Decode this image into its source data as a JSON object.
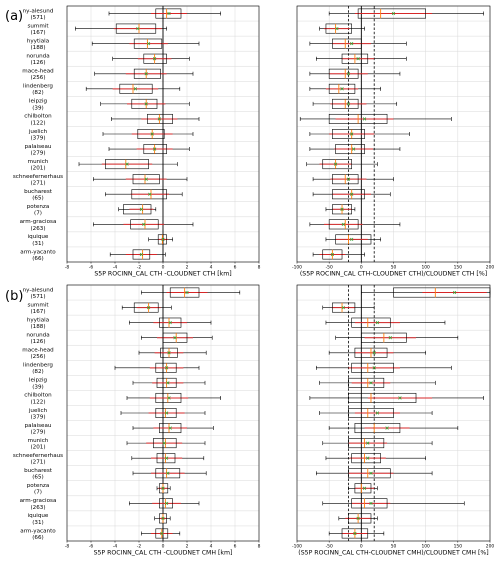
{
  "panel_labels": [
    "(a)",
    "(b)"
  ],
  "stations": [
    {
      "name": "ny-alesund",
      "n": "(571)"
    },
    {
      "name": "summit",
      "n": "(167)"
    },
    {
      "name": "hyytiala",
      "n": "(188)"
    },
    {
      "name": "norunda",
      "n": "(126)"
    },
    {
      "name": "mace-head",
      "n": "(256)"
    },
    {
      "name": "lindenberg",
      "n": "(82)"
    },
    {
      "name": "leipzig",
      "n": "(39)"
    },
    {
      "name": "chilbolton",
      "n": "(122)"
    },
    {
      "name": "juelich",
      "n": "(379)"
    },
    {
      "name": "palaiseau",
      "n": "(279)"
    },
    {
      "name": "munich",
      "n": "(201)"
    },
    {
      "name": "schneefernerhaus",
      "n": "(271)"
    },
    {
      "name": "bucharest",
      "n": "(65)"
    },
    {
      "name": "potenza",
      "n": "(7)"
    },
    {
      "name": "arm-graciosa",
      "n": "(263)"
    },
    {
      "name": "iquique",
      "n": "(31)"
    },
    {
      "name": "arm-yacanto",
      "n": "(66)"
    }
  ],
  "colors": {
    "median": "#ff7f0e",
    "mean": "#2ca02c",
    "std": "#d62728",
    "box": "#000000",
    "grid": "#d9d9d9",
    "ref": "#000000"
  },
  "chart_data": [
    {
      "type": "box",
      "panel": "a-left",
      "xlabel": "S5P ROCINN_CAL CTH -CLOUDNET CTH [km]",
      "xlim": [
        -8,
        8
      ],
      "xticks": [
        -8,
        -6,
        -4,
        -2,
        0,
        2,
        4,
        6,
        8
      ],
      "ref_lines": [
        0
      ],
      "boxes": [
        {
          "q1": -0.6,
          "med": 0.3,
          "q3": 1.5,
          "wlo": -4.5,
          "whi": 4.8,
          "mean": 0.5,
          "std": 1.5
        },
        {
          "q1": -3.9,
          "med": -2.0,
          "q3": -0.6,
          "wlo": -7.3,
          "whi": 0.3,
          "mean": -2.1,
          "std": 2.0
        },
        {
          "q1": -2.4,
          "med": -1.3,
          "q3": -0.1,
          "wlo": -5.9,
          "whi": 3.0,
          "mean": -1.2,
          "std": 1.6
        },
        {
          "q1": -1.6,
          "med": -0.7,
          "q3": 0.3,
          "wlo": -4.2,
          "whi": 2.2,
          "mean": -0.7,
          "std": 1.4
        },
        {
          "q1": -2.4,
          "med": -1.4,
          "q3": -0.2,
          "wlo": -5.7,
          "whi": 2.5,
          "mean": -1.4,
          "std": 1.7
        },
        {
          "q1": -3.6,
          "med": -2.5,
          "q3": -0.9,
          "wlo": -6.4,
          "whi": 1.4,
          "mean": -2.3,
          "std": 1.9
        },
        {
          "q1": -2.6,
          "med": -1.4,
          "q3": -0.5,
          "wlo": -5.2,
          "whi": 2.2,
          "mean": -1.4,
          "std": 1.6
        },
        {
          "q1": -1.3,
          "med": -0.3,
          "q3": 0.8,
          "wlo": -4.3,
          "whi": 3.0,
          "mean": -0.3,
          "std": 1.5
        },
        {
          "q1": -2.1,
          "med": -0.9,
          "q3": 0.1,
          "wlo": -5.0,
          "whi": 2.5,
          "mean": -0.9,
          "std": 1.7
        },
        {
          "q1": -1.6,
          "med": -0.7,
          "q3": 0.3,
          "wlo": -4.5,
          "whi": 2.2,
          "mean": -0.7,
          "std": 1.5
        },
        {
          "q1": -4.8,
          "med": -3.1,
          "q3": -1.2,
          "wlo": -7.0,
          "whi": 1.2,
          "mean": -3.0,
          "std": 2.1
        },
        {
          "q1": -2.5,
          "med": -1.5,
          "q3": -0.3,
          "wlo": -5.8,
          "whi": 2.0,
          "mean": -1.4,
          "std": 1.7
        },
        {
          "q1": -2.6,
          "med": -1.0,
          "q3": 0.3,
          "wlo": -4.8,
          "whi": 1.6,
          "mean": -1.1,
          "std": 1.6
        },
        {
          "q1": -3.3,
          "med": -1.7,
          "q3": -1.0,
          "wlo": -3.7,
          "whi": -0.6,
          "mean": -1.8,
          "std": 1.0
        },
        {
          "q1": -2.7,
          "med": -1.5,
          "q3": -0.4,
          "wlo": -5.8,
          "whi": 2.5,
          "mean": -1.6,
          "std": 1.7
        },
        {
          "q1": -0.4,
          "med": -0.05,
          "q3": 0.3,
          "wlo": -1.2,
          "whi": 0.8,
          "mean": 0.0,
          "std": 0.4
        },
        {
          "q1": -2.5,
          "med": -1.7,
          "q3": -1.1,
          "wlo": -4.4,
          "whi": 0.2,
          "mean": -1.8,
          "std": 1.3
        }
      ]
    },
    {
      "type": "box",
      "panel": "a-right",
      "xlabel": "(S5P ROCINN_CAL CTH-CLOUDNET CTH)/CLOUDNET CTH [%]",
      "xlim": [
        -100,
        200
      ],
      "xticks": [
        -100,
        -50,
        0,
        50,
        100,
        150,
        200
      ],
      "ref_lines": [
        0
      ],
      "dashed_lines": [
        -20,
        20
      ],
      "boxes": [
        {
          "q1": -5,
          "med": 30,
          "q3": 100,
          "wlo": -50,
          "whi": 190,
          "mean": 50,
          "std": 60
        },
        {
          "q1": -55,
          "med": -40,
          "q3": -15,
          "wlo": -65,
          "whi": 5,
          "mean": -38,
          "std": 20
        },
        {
          "q1": -45,
          "med": -25,
          "q3": 0,
          "wlo": -80,
          "whi": 70,
          "mean": -15,
          "std": 30
        },
        {
          "q1": -30,
          "med": -10,
          "q3": 10,
          "wlo": -70,
          "whi": 70,
          "mean": -5,
          "std": 25
        },
        {
          "q1": -50,
          "med": -25,
          "q3": -5,
          "wlo": -80,
          "whi": 60,
          "mean": -20,
          "std": 30
        },
        {
          "q1": -50,
          "med": -35,
          "q3": -10,
          "wlo": -80,
          "whi": 30,
          "mean": -30,
          "std": 25
        },
        {
          "q1": -45,
          "med": -25,
          "q3": -5,
          "wlo": -75,
          "whi": 55,
          "mean": -20,
          "std": 28
        },
        {
          "q1": -50,
          "med": -5,
          "q3": 40,
          "wlo": -95,
          "whi": 140,
          "mean": 5,
          "std": 45
        },
        {
          "q1": -45,
          "med": -15,
          "q3": 5,
          "wlo": -80,
          "whi": 75,
          "mean": -15,
          "std": 35
        },
        {
          "q1": -40,
          "med": -15,
          "q3": 5,
          "wlo": -80,
          "whi": 60,
          "mean": -12,
          "std": 30
        },
        {
          "q1": -60,
          "med": -40,
          "q3": -15,
          "wlo": -85,
          "whi": 25,
          "mean": -40,
          "std": 25
        },
        {
          "q1": -45,
          "med": -25,
          "q3": -5,
          "wlo": -75,
          "whi": 50,
          "mean": -20,
          "std": 28
        },
        {
          "q1": -45,
          "med": -15,
          "q3": 5,
          "wlo": -75,
          "whi": 45,
          "mean": -15,
          "std": 30
        },
        {
          "q1": -45,
          "med": -30,
          "q3": -15,
          "wlo": -55,
          "whi": -10,
          "mean": -30,
          "std": 15
        },
        {
          "q1": -50,
          "med": -25,
          "q3": -5,
          "wlo": -80,
          "whi": 60,
          "mean": -28,
          "std": 30
        },
        {
          "q1": -40,
          "med": -20,
          "q3": 15,
          "wlo": -55,
          "whi": 30,
          "mean": -15,
          "std": 25
        },
        {
          "q1": -60,
          "med": -45,
          "q3": -30,
          "wlo": -75,
          "whi": 5,
          "mean": -45,
          "std": 20
        }
      ]
    },
    {
      "type": "box",
      "panel": "b-left",
      "xlabel": "S5P ROCINN_CAL CTH -CLOUDNET CMH [km]",
      "xlim": [
        -8,
        8
      ],
      "xticks": [
        -8,
        -6,
        -4,
        -2,
        0,
        2,
        4,
        6,
        8
      ],
      "ref_lines": [
        0
      ],
      "boxes": [
        {
          "q1": 0.6,
          "med": 1.8,
          "q3": 3.0,
          "wlo": -1.8,
          "whi": 6.4,
          "mean": 2.0,
          "std": 1.7
        },
        {
          "q1": -2.4,
          "med": -1.2,
          "q3": -0.4,
          "wlo": -3.4,
          "whi": 0.7,
          "mean": -1.2,
          "std": 1.0
        },
        {
          "q1": -0.3,
          "med": 0.5,
          "q3": 1.5,
          "wlo": -2.8,
          "whi": 4.0,
          "mean": 0.6,
          "std": 1.4
        },
        {
          "q1": 0.0,
          "med": 1.1,
          "q3": 2.0,
          "wlo": -1.8,
          "whi": 4.1,
          "mean": 1.0,
          "std": 1.5
        },
        {
          "q1": -0.2,
          "med": 0.5,
          "q3": 1.2,
          "wlo": -2.0,
          "whi": 3.6,
          "mean": 0.5,
          "std": 1.2
        },
        {
          "q1": -0.6,
          "med": 0.3,
          "q3": 1.1,
          "wlo": -4.0,
          "whi": 3.0,
          "mean": 0.3,
          "std": 1.4
        },
        {
          "q1": -0.5,
          "med": 0.3,
          "q3": 1.1,
          "wlo": -2.5,
          "whi": 3.5,
          "mean": 0.4,
          "std": 1.3
        },
        {
          "q1": -0.6,
          "med": 0.4,
          "q3": 1.5,
          "wlo": -3.0,
          "whi": 4.8,
          "mean": 0.5,
          "std": 1.6
        },
        {
          "q1": -0.6,
          "med": 0.2,
          "q3": 1.1,
          "wlo": -3.5,
          "whi": 3.5,
          "mean": 0.3,
          "std": 1.5
        },
        {
          "q1": -0.3,
          "med": 0.5,
          "q3": 1.5,
          "wlo": -2.5,
          "whi": 4.2,
          "mean": 0.6,
          "std": 1.4
        },
        {
          "q1": -0.8,
          "med": 0.2,
          "q3": 1.1,
          "wlo": -3.0,
          "whi": 3.5,
          "mean": 0.1,
          "std": 1.5
        },
        {
          "q1": -0.5,
          "med": 0.2,
          "q3": 1.0,
          "wlo": -2.6,
          "whi": 3.4,
          "mean": 0.3,
          "std": 1.3
        },
        {
          "q1": -0.6,
          "med": 0.3,
          "q3": 1.4,
          "wlo": -2.5,
          "whi": 3.6,
          "mean": 0.4,
          "std": 1.4
        },
        {
          "q1": -0.3,
          "med": 0.0,
          "q3": 0.4,
          "wlo": -0.5,
          "whi": 0.6,
          "mean": 0.0,
          "std": 0.4
        },
        {
          "q1": -0.3,
          "med": 0.2,
          "q3": 0.8,
          "wlo": -2.8,
          "whi": 3.0,
          "mean": 0.3,
          "std": 1.2
        },
        {
          "q1": -0.3,
          "med": 0.0,
          "q3": 0.3,
          "wlo": -0.7,
          "whi": 0.6,
          "mean": 0.0,
          "std": 0.3
        },
        {
          "q1": -0.6,
          "med": -0.1,
          "q3": 0.4,
          "wlo": -1.8,
          "whi": 1.4,
          "mean": -0.1,
          "std": 0.9
        }
      ]
    },
    {
      "type": "box",
      "panel": "b-right",
      "xlabel": "(S5P ROCINN_CAL CTH-CLOUDNET CMH)/CLOUDNET CMH [%]",
      "xlim": [
        -100,
        200
      ],
      "xticks": [
        -100,
        -50,
        0,
        50,
        100,
        150,
        200
      ],
      "ref_lines": [
        0
      ],
      "dashed_lines": [
        -20,
        20
      ],
      "boxes": [
        {
          "q1": 50,
          "med": 115,
          "q3": 200,
          "wlo": 0,
          "whi": 200,
          "mean": 145,
          "std": 50
        },
        {
          "q1": -45,
          "med": -30,
          "q3": -10,
          "wlo": -60,
          "whi": 20,
          "mean": -28,
          "std": 18
        },
        {
          "q1": -15,
          "med": 10,
          "q3": 45,
          "wlo": -55,
          "whi": 130,
          "mean": 25,
          "std": 35
        },
        {
          "q1": 0,
          "med": 35,
          "q3": 70,
          "wlo": -40,
          "whi": 150,
          "mean": 45,
          "std": 40
        },
        {
          "q1": -10,
          "med": 15,
          "q3": 40,
          "wlo": -50,
          "whi": 100,
          "mean": 20,
          "std": 30
        },
        {
          "q1": -15,
          "med": 10,
          "q3": 50,
          "wlo": -70,
          "whi": 140,
          "mean": 20,
          "std": 40
        },
        {
          "q1": -20,
          "med": 10,
          "q3": 35,
          "wlo": -65,
          "whi": 115,
          "mean": 15,
          "std": 30
        },
        {
          "q1": -20,
          "med": 15,
          "q3": 85,
          "wlo": -80,
          "whi": 190,
          "mean": 60,
          "std": 50
        },
        {
          "q1": -20,
          "med": 10,
          "q3": 50,
          "wlo": -65,
          "whi": 110,
          "mean": 25,
          "std": 35
        },
        {
          "q1": -10,
          "med": 20,
          "q3": 60,
          "wlo": -50,
          "whi": 150,
          "mean": 40,
          "std": 35
        },
        {
          "q1": -20,
          "med": 5,
          "q3": 35,
          "wlo": -60,
          "whi": 110,
          "mean": 10,
          "std": 30
        },
        {
          "q1": -15,
          "med": 5,
          "q3": 30,
          "wlo": -55,
          "whi": 100,
          "mean": 10,
          "std": 28
        },
        {
          "q1": -20,
          "med": 10,
          "q3": 45,
          "wlo": -70,
          "whi": 110,
          "mean": 15,
          "std": 35
        },
        {
          "q1": -10,
          "med": 0,
          "q3": 15,
          "wlo": -20,
          "whi": 25,
          "mean": 5,
          "std": 15
        },
        {
          "q1": -15,
          "med": 5,
          "q3": 40,
          "wlo": -60,
          "whi": 160,
          "mean": 15,
          "std": 30
        },
        {
          "q1": -20,
          "med": -5,
          "q3": 15,
          "wlo": -35,
          "whi": 25,
          "mean": -5,
          "std": 20
        },
        {
          "q1": -30,
          "med": -10,
          "q3": 10,
          "wlo": -50,
          "whi": 35,
          "mean": -10,
          "std": 20
        }
      ]
    }
  ]
}
